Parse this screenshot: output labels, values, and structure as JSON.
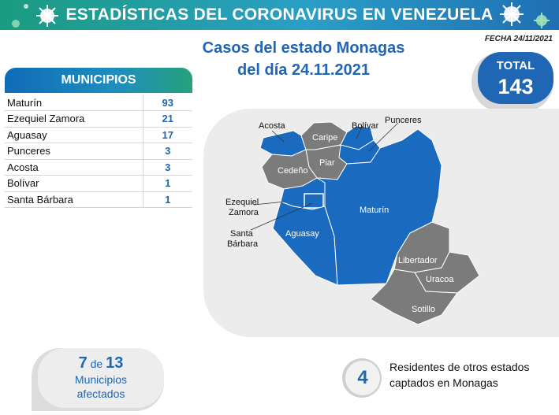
{
  "header": {
    "title": "ESTADÍSTICAS DEL CORONAVIRUS EN VENEZUELA",
    "date": "FECHA 24/11/2021"
  },
  "main": {
    "title_line1": "Casos del estado Monagas",
    "title_line2": "del día 24.11.2021"
  },
  "total": {
    "label": "TOTAL",
    "value": "143"
  },
  "colors": {
    "accent_blue": "#1f66b5",
    "map_affected": "#1a6bbf",
    "map_unaffected": "#7b7b7b",
    "header_green": "#26a17c"
  },
  "chart_data": {
    "type": "table",
    "title": "MUNICIPIOS",
    "rows": [
      {
        "name": "Maturín",
        "value": 93
      },
      {
        "name": "Ezequiel Zamora",
        "value": 21
      },
      {
        "name": "Aguasay",
        "value": 17
      },
      {
        "name": "Punceres",
        "value": 3
      },
      {
        "name": "Acosta",
        "value": 3
      },
      {
        "name": "Bolívar",
        "value": 1
      },
      {
        "name": "Santa Bárbara",
        "value": 1
      }
    ]
  },
  "map": {
    "labels": {
      "acosta": "Acosta",
      "bolivar": "Bolívar",
      "punceres": "Punceres",
      "caripe": "Caripe",
      "piar": "Piar",
      "cedeno": "Cedeño",
      "ezequiel_1": "Ezequiel",
      "ezequiel_2": "Zamora",
      "maturin": "Maturín",
      "santa_1": "Santa",
      "santa_2": "Bárbara",
      "aguasay": "Aguasay",
      "libertador": "Libertador",
      "uracoa": "Uracoa",
      "sotillo": "Sotillo"
    }
  },
  "summary": {
    "affected": "7",
    "of": "de",
    "total_munis": "13",
    "line1": "Municipios",
    "line2": "afectados"
  },
  "residents": {
    "count": "4",
    "line1": "Residentes de otros estados",
    "line2": "captados en Monagas"
  }
}
